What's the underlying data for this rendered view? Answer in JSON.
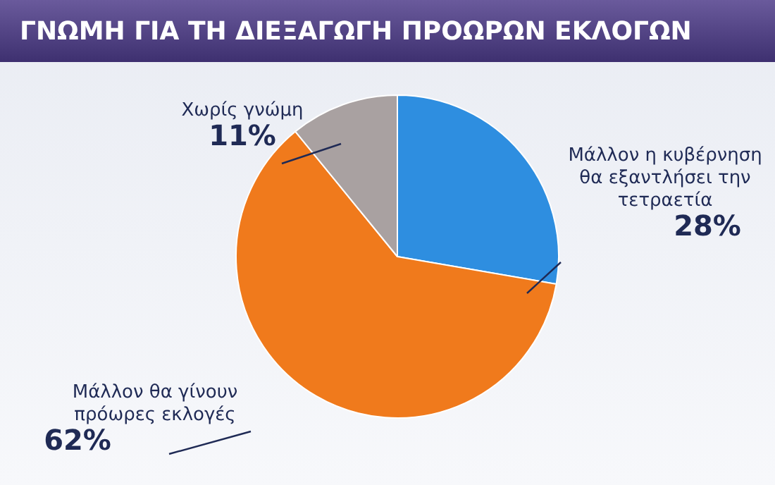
{
  "chart_data": {
    "type": "pie",
    "title": "ΓΝΩΜΗ ΓΙΑ ΤΗ ΔΙΕΞΑΓΩΓΗ ΠΡΟΩΡΩΝ ΕΚΛΟΓΩΝ",
    "categories": [
      "Μάλλον η κυβέρνηση θα εξαντλήσει την τετραετία",
      "Μάλλον θα γίνουν πρόωρες εκλογές",
      "Χωρίς γνώμη"
    ],
    "values": [
      28,
      62,
      11
    ],
    "colors": [
      "#2e8ee0",
      "#f07a1c",
      "#a9a1a1"
    ],
    "value_labels": [
      "28%",
      "62%",
      "11%"
    ],
    "legend": false
  }
}
